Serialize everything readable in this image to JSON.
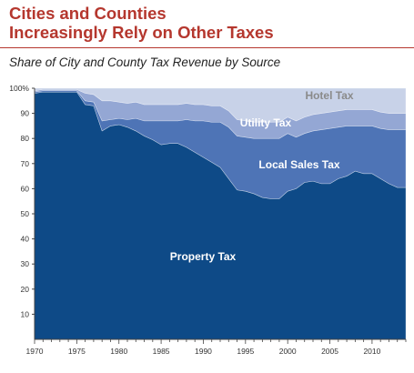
{
  "header": {
    "title_line1": "Cities and Counties",
    "title_line2": "Increasingly Rely on Other Taxes",
    "subtitle": "Share of City and County Tax Revenue by Source"
  },
  "chart_data": {
    "type": "area",
    "stacked": true,
    "title": "Cities and Counties Increasingly Rely on Other Taxes",
    "subtitle": "Share of City and County Tax Revenue by Source",
    "x": [
      1970,
      1971,
      1972,
      1973,
      1974,
      1975,
      1976,
      1977,
      1978,
      1979,
      1980,
      1981,
      1982,
      1983,
      1984,
      1985,
      1986,
      1987,
      1988,
      1989,
      1990,
      1991,
      1992,
      1993,
      1994,
      1995,
      1996,
      1997,
      1998,
      1999,
      2000,
      2001,
      2002,
      2003,
      2004,
      2005,
      2006,
      2007,
      2008,
      2009,
      2010,
      2011,
      2012,
      2013,
      2014
    ],
    "xlim": [
      1970,
      2014
    ],
    "ylim": [
      0,
      100
    ],
    "x_ticks": [
      1970,
      1975,
      1980,
      1985,
      1990,
      1995,
      2000,
      2005,
      2010
    ],
    "y_ticks": [
      10,
      20,
      30,
      40,
      50,
      60,
      70,
      80,
      90,
      100
    ],
    "y_tick_labels": [
      "10",
      "20",
      "30",
      "40",
      "50",
      "60",
      "70",
      "80",
      "90",
      "100%"
    ],
    "series": [
      {
        "name": "Property Tax",
        "color": "#0e4a87",
        "values": [
          98,
          98.5,
          98.5,
          98.5,
          98.5,
          98.5,
          93.5,
          93,
          83,
          85,
          85.5,
          84.5,
          83,
          81,
          79.5,
          77.5,
          78,
          78,
          76.5,
          74.5,
          72.5,
          70.5,
          68.5,
          64,
          59.5,
          59,
          58,
          56.5,
          56,
          56,
          59,
          60,
          62.5,
          63,
          62,
          62,
          64,
          65,
          67,
          66,
          66,
          64,
          62,
          60.5,
          60.5
        ]
      },
      {
        "name": "Local Sales Tax",
        "color": "#4e74b6",
        "values": [
          0.5,
          0.5,
          0.5,
          0.5,
          0.5,
          0.5,
          1.5,
          1.5,
          4,
          2.5,
          2.5,
          3,
          5,
          6,
          7.5,
          9.5,
          9,
          9,
          11,
          12.5,
          14.5,
          16,
          18,
          20.5,
          21.5,
          21.5,
          22,
          23.5,
          24,
          24,
          23,
          20.5,
          19.5,
          20,
          21.5,
          22,
          20.5,
          20,
          18,
          19,
          19,
          20,
          21.5,
          23,
          23
        ]
      },
      {
        "name": "Utility Tax",
        "color": "#94a7d4",
        "values": [
          0.5,
          0.5,
          0.5,
          0.5,
          0.5,
          0.5,
          3,
          3,
          8,
          7.5,
          6.5,
          6.5,
          6.5,
          6.5,
          6.5,
          6.5,
          6.5,
          6.5,
          6.5,
          6.5,
          6.5,
          6.5,
          6.5,
          6.5,
          6.5,
          6.5,
          6.5,
          6.5,
          6.5,
          6.5,
          6.5,
          6.5,
          6.5,
          6.5,
          6.5,
          6.5,
          6.5,
          6.5,
          6.5,
          6.5,
          6.5,
          6.5,
          6.5,
          6.5,
          6.5
        ]
      },
      {
        "name": "Hotel Tax",
        "color": "#c8d2e8",
        "values": [
          1,
          0.5,
          0.5,
          0.5,
          0.5,
          0.5,
          2,
          2.5,
          5,
          5,
          5.5,
          6,
          5.5,
          6.5,
          6.5,
          6.5,
          6.5,
          6.5,
          6,
          6.5,
          6.5,
          7,
          7,
          9,
          12.5,
          13,
          13.5,
          13.5,
          13.5,
          13.5,
          11.5,
          13,
          11.5,
          10.5,
          10,
          9.5,
          9,
          8.5,
          8.5,
          8.5,
          8.5,
          9.5,
          10,
          10,
          10
        ]
      }
    ]
  }
}
